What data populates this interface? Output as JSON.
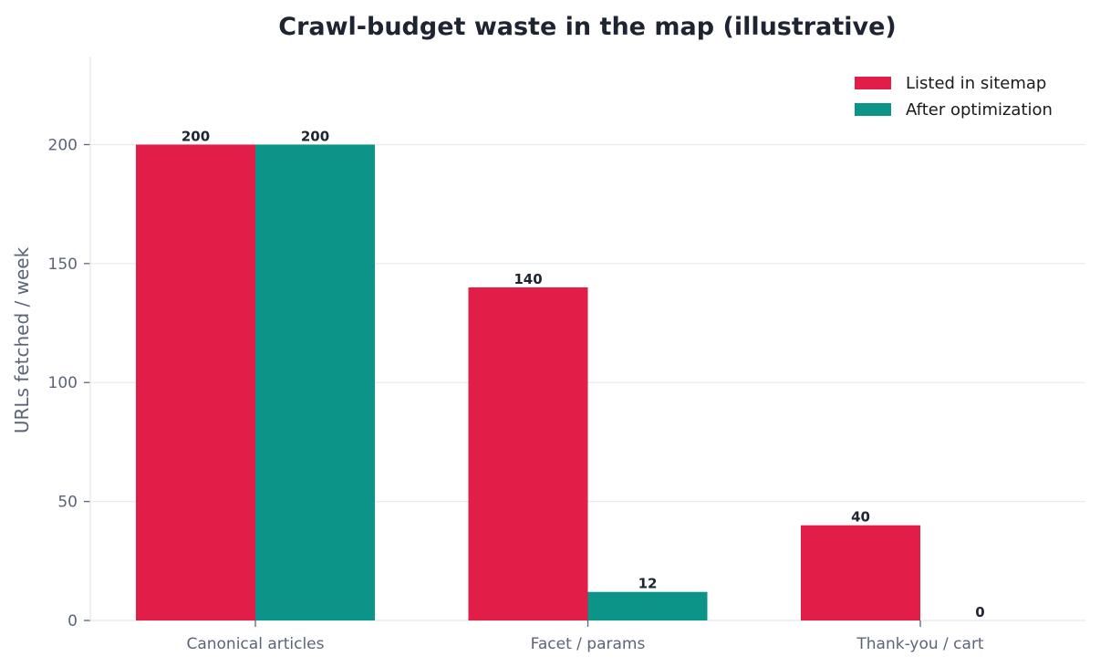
{
  "chart_data": {
    "type": "bar",
    "title": "Crawl-budget waste in the map (illustrative)",
    "xlabel": "",
    "ylabel": "URLs fetched / week",
    "categories": [
      "Canonical articles",
      "Facet / params",
      "Thank-you / cart"
    ],
    "series": [
      {
        "name": "Listed in sitemap",
        "color": "#e11d48",
        "values": [
          200,
          140,
          40
        ]
      },
      {
        "name": "After optimization",
        "color": "#0d9488",
        "values": [
          200,
          12,
          0
        ]
      }
    ],
    "ylim": [
      0,
      237
    ],
    "yticks": [
      0,
      50,
      100,
      150,
      200
    ],
    "grid": true,
    "legend_position": "top-right"
  }
}
